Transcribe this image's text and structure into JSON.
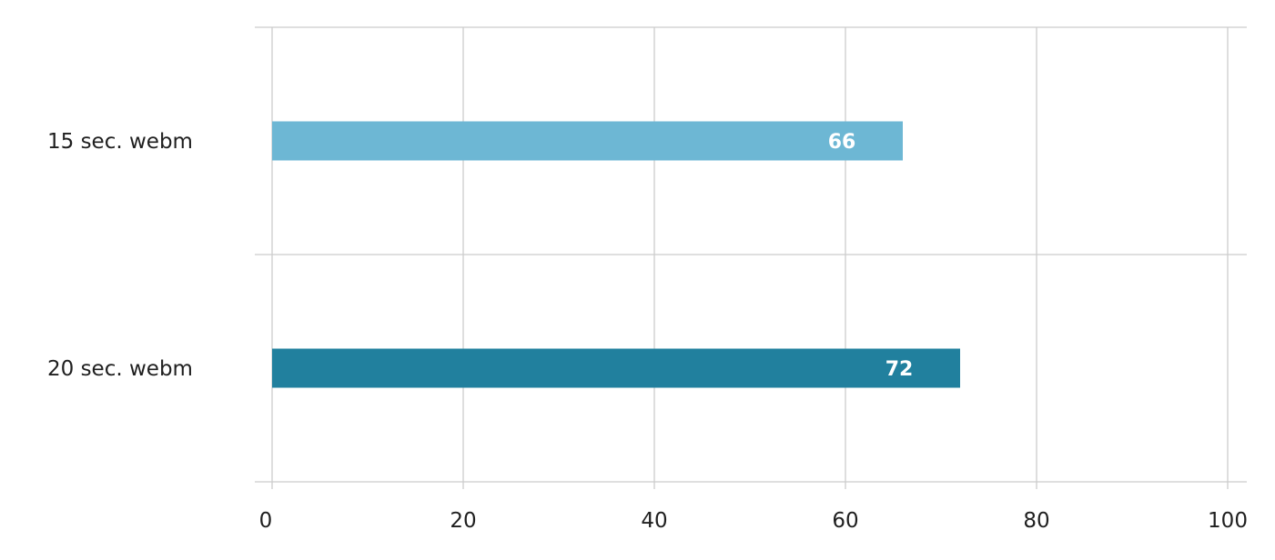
{
  "chart_data": {
    "type": "bar",
    "orientation": "horizontal",
    "categories": [
      "15 sec. webm",
      "20 sec. webm"
    ],
    "values": [
      66,
      72
    ],
    "bar_colors": [
      "#6db7d4",
      "#21809e"
    ],
    "xlim": [
      0,
      100
    ],
    "x_ticks": [
      0,
      20,
      40,
      60,
      80,
      100
    ],
    "data_labels": [
      "66",
      "72"
    ],
    "grid": true,
    "title": "",
    "xlabel": "",
    "ylabel": ""
  }
}
